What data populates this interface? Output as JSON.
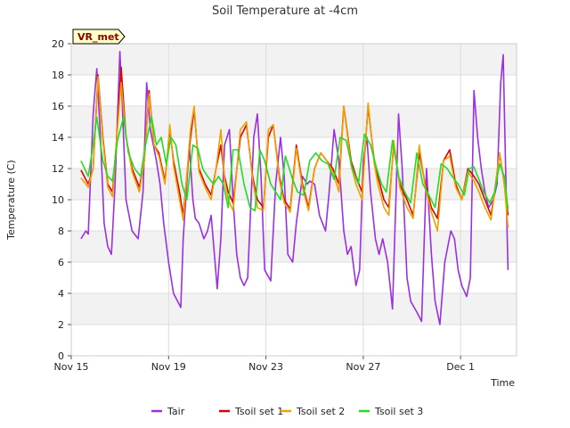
{
  "chart_data": {
    "type": "line",
    "title": "Soil Temperature at -4cm",
    "xlabel": "Time",
    "ylabel": "Temperature (C)",
    "annotation": "VR_met",
    "xlim": [
      0,
      18.3
    ],
    "ylim": [
      0,
      20
    ],
    "xticks": [
      {
        "x": 0,
        "label": "Nov 15"
      },
      {
        "x": 4,
        "label": "Nov 19"
      },
      {
        "x": 8,
        "label": "Nov 23"
      },
      {
        "x": 12,
        "label": "Nov 27"
      },
      {
        "x": 16,
        "label": "Dec 1"
      }
    ],
    "yticks": [
      0,
      2,
      4,
      6,
      8,
      10,
      12,
      14,
      16,
      18,
      20
    ],
    "grid": true,
    "legend_position": "bottom",
    "x_unit": "days since Nov 15",
    "series": [
      {
        "name": "Tair",
        "color": "#9b30e0",
        "x": [
          0.4,
          0.6,
          0.7,
          0.9,
          1.05,
          1.2,
          1.35,
          1.5,
          1.65,
          1.8,
          2.0,
          2.1,
          2.25,
          2.5,
          2.75,
          2.95,
          3.1,
          3.25,
          3.5,
          3.65,
          3.8,
          4.0,
          4.2,
          4.5,
          4.6,
          4.85,
          5.0,
          5.1,
          5.25,
          5.45,
          5.6,
          5.75,
          6.0,
          6.15,
          6.3,
          6.5,
          6.65,
          6.8,
          6.95,
          7.1,
          7.25,
          7.5,
          7.65,
          7.8,
          7.95,
          8.2,
          8.4,
          8.6,
          8.75,
          8.9,
          9.1,
          9.25,
          9.5,
          9.7,
          9.8,
          10.0,
          10.2,
          10.45,
          10.6,
          10.8,
          11.0,
          11.2,
          11.35,
          11.5,
          11.7,
          11.85,
          12.0,
          12.15,
          12.3,
          12.5,
          12.65,
          12.8,
          13.0,
          13.2,
          13.45,
          13.6,
          13.8,
          13.95,
          14.2,
          14.4,
          14.6,
          14.8,
          14.95,
          15.15,
          15.35,
          15.6,
          15.75,
          15.9,
          16.05,
          16.25,
          16.4,
          16.55,
          16.7,
          16.85,
          17.0,
          17.15,
          17.35,
          17.5,
          17.65,
          17.75,
          17.85,
          17.95
        ],
        "y": [
          7.5,
          8.0,
          7.8,
          15.5,
          18.4,
          14.0,
          8.5,
          7.0,
          6.5,
          11.0,
          19.5,
          16.0,
          10.0,
          8.0,
          7.5,
          10.5,
          17.5,
          14.5,
          12.5,
          11.0,
          8.5,
          6.0,
          4.0,
          3.1,
          7.5,
          13.5,
          10.0,
          8.8,
          8.5,
          7.5,
          8.0,
          9.0,
          4.3,
          7.5,
          13.5,
          14.5,
          10.0,
          6.5,
          5.0,
          4.5,
          5.0,
          14.0,
          15.5,
          11.5,
          5.5,
          4.8,
          11.0,
          14.0,
          11.5,
          6.5,
          6.0,
          8.5,
          11.5,
          11.0,
          11.2,
          11.0,
          9.0,
          8.0,
          10.5,
          14.5,
          12.5,
          8.0,
          6.5,
          7.0,
          4.5,
          5.5,
          12.5,
          14.0,
          10.5,
          7.5,
          6.5,
          7.5,
          6.0,
          3.0,
          15.5,
          12.0,
          5.0,
          3.5,
          2.8,
          2.2,
          12.0,
          6.5,
          3.5,
          2.0,
          6.0,
          8.0,
          7.5,
          5.5,
          4.5,
          3.8,
          5.0,
          17.0,
          14.0,
          12.0,
          10.5,
          9.5,
          10.0,
          11.0,
          17.5,
          19.3,
          12.0,
          5.5
        ]
      },
      {
        "name": "Tsoil set 1",
        "color": "#dd0000",
        "x": [
          0.4,
          0.7,
          0.9,
          1.1,
          1.3,
          1.5,
          1.7,
          1.85,
          2.05,
          2.25,
          2.5,
          2.8,
          3.0,
          3.2,
          3.4,
          3.6,
          3.85,
          4.05,
          4.2,
          4.45,
          4.6,
          4.9,
          5.05,
          5.25,
          5.5,
          5.75,
          5.95,
          6.15,
          6.3,
          6.45,
          6.65,
          6.95,
          7.2,
          7.45,
          7.65,
          7.9,
          8.1,
          8.3,
          8.55,
          8.75,
          9.0,
          9.25,
          9.5,
          9.75,
          10.0,
          10.25,
          10.5,
          10.75,
          11.0,
          11.2,
          11.5,
          11.7,
          11.95,
          12.2,
          12.45,
          12.6,
          12.85,
          13.05,
          13.25,
          13.5,
          13.8,
          14.05,
          14.3,
          14.55,
          14.8,
          15.05,
          15.3,
          15.55,
          15.8,
          16.05,
          16.3,
          16.55,
          16.75,
          17.0,
          17.25,
          17.4,
          17.6,
          17.8,
          17.95
        ],
        "y": [
          11.9,
          11.0,
          12.0,
          18.0,
          14.0,
          11.0,
          10.5,
          13.5,
          18.5,
          14.0,
          12.0,
          10.8,
          12.5,
          17.0,
          13.5,
          13.0,
          11.2,
          14.5,
          12.5,
          10.5,
          9.0,
          14.0,
          15.8,
          12.0,
          11.0,
          10.3,
          12.0,
          13.5,
          11.5,
          10.5,
          9.8,
          14.0,
          14.8,
          11.5,
          10.0,
          9.5,
          14.0,
          14.8,
          11.5,
          10.0,
          9.4,
          13.5,
          11.0,
          9.5,
          12.0,
          13.0,
          12.5,
          12.0,
          11.0,
          16.0,
          12.5,
          11.5,
          10.5,
          16.0,
          12.5,
          11.5,
          10.0,
          9.5,
          13.5,
          11.0,
          10.0,
          9.0,
          13.0,
          11.0,
          9.5,
          8.8,
          12.5,
          13.2,
          11.0,
          10.0,
          12.0,
          11.5,
          11.0,
          10.0,
          9.0,
          10.5,
          13.0,
          11.0,
          9.0
        ]
      },
      {
        "name": "Tsoil set 2",
        "color": "#f0a000",
        "x": [
          0.4,
          0.7,
          0.9,
          1.1,
          1.3,
          1.5,
          1.7,
          1.85,
          2.05,
          2.25,
          2.5,
          2.8,
          3.0,
          3.2,
          3.4,
          3.6,
          3.85,
          4.05,
          4.2,
          4.45,
          4.6,
          4.9,
          5.05,
          5.25,
          5.5,
          5.75,
          5.95,
          6.15,
          6.3,
          6.45,
          6.65,
          6.95,
          7.2,
          7.45,
          7.65,
          7.9,
          8.1,
          8.3,
          8.55,
          8.75,
          9.0,
          9.25,
          9.5,
          9.75,
          10.0,
          10.25,
          10.5,
          10.75,
          11.0,
          11.2,
          11.5,
          11.7,
          11.95,
          12.2,
          12.45,
          12.6,
          12.85,
          13.05,
          13.25,
          13.5,
          13.8,
          14.05,
          14.3,
          14.55,
          14.8,
          15.05,
          15.3,
          15.55,
          15.8,
          16.05,
          16.3,
          16.55,
          16.75,
          17.0,
          17.25,
          17.4,
          17.6,
          17.8,
          17.95
        ],
        "y": [
          11.4,
          10.8,
          12.0,
          17.9,
          13.8,
          10.8,
          10.2,
          13.5,
          17.5,
          14.0,
          11.8,
          10.5,
          12.5,
          16.8,
          13.5,
          12.8,
          11.0,
          14.8,
          12.2,
          10.0,
          8.7,
          14.5,
          16.0,
          11.8,
          10.8,
          10.0,
          12.0,
          14.5,
          11.3,
          10.0,
          9.3,
          14.5,
          15.0,
          11.3,
          9.5,
          9.3,
          14.5,
          14.8,
          11.3,
          9.8,
          9.2,
          13.3,
          10.8,
          9.3,
          12.0,
          13.0,
          12.5,
          11.8,
          10.5,
          16.0,
          12.2,
          11.0,
          10.0,
          16.2,
          12.3,
          11.0,
          9.5,
          9.0,
          13.8,
          10.8,
          9.5,
          8.8,
          13.5,
          10.8,
          9.2,
          8.0,
          12.5,
          12.8,
          10.8,
          10.0,
          11.8,
          11.2,
          10.5,
          9.5,
          8.7,
          10.5,
          13.0,
          11.0,
          8.2
        ]
      },
      {
        "name": "Tsoil set 3",
        "color": "#22dd22",
        "x": [
          0.4,
          0.7,
          0.85,
          1.05,
          1.3,
          1.5,
          1.7,
          1.9,
          2.15,
          2.35,
          2.6,
          2.85,
          3.05,
          3.3,
          3.5,
          3.7,
          3.9,
          4.1,
          4.3,
          4.55,
          4.75,
          5.0,
          5.2,
          5.4,
          5.6,
          5.85,
          6.05,
          6.25,
          6.45,
          6.65,
          6.85,
          7.1,
          7.35,
          7.55,
          7.75,
          7.95,
          8.2,
          8.4,
          8.6,
          8.8,
          9.1,
          9.3,
          9.55,
          9.8,
          10.05,
          10.3,
          10.55,
          10.8,
          11.05,
          11.3,
          11.55,
          11.8,
          12.05,
          12.3,
          12.55,
          12.75,
          12.95,
          13.2,
          13.45,
          13.7,
          13.95,
          14.2,
          14.45,
          14.7,
          14.95,
          15.2,
          15.45,
          15.65,
          15.9,
          16.15,
          16.35,
          16.55,
          16.75,
          16.95,
          17.2,
          17.4,
          17.6,
          17.8,
          17.95
        ],
        "y": [
          12.5,
          11.5,
          13.0,
          15.3,
          12.5,
          11.5,
          11.2,
          13.8,
          15.3,
          13.0,
          12.0,
          11.5,
          13.5,
          15.3,
          13.5,
          14.0,
          12.3,
          14.0,
          13.5,
          11.0,
          10.0,
          13.5,
          13.3,
          12.0,
          11.5,
          11.0,
          11.5,
          11.0,
          9.5,
          13.2,
          13.2,
          11.0,
          9.5,
          9.3,
          13.2,
          12.5,
          11.0,
          10.5,
          10.0,
          12.8,
          11.3,
          10.5,
          10.3,
          12.5,
          13.0,
          12.5,
          12.3,
          11.3,
          14.0,
          13.8,
          12.0,
          11.0,
          14.2,
          13.5,
          12.0,
          11.0,
          10.5,
          13.8,
          11.5,
          10.5,
          9.8,
          13.0,
          11.0,
          10.3,
          9.5,
          12.3,
          12.0,
          11.5,
          11.0,
          10.3,
          12.0,
          12.1,
          11.3,
          10.5,
          9.8,
          10.5,
          12.3,
          11.5,
          9.4
        ]
      }
    ]
  }
}
